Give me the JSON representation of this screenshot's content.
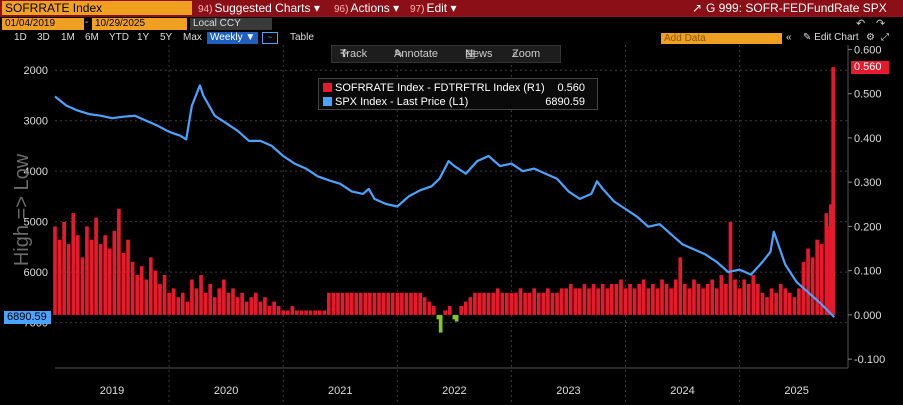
{
  "header": {
    "ticker": "SOFRRATE Index",
    "menus": [
      {
        "num": "94)",
        "label": "Suggested Charts"
      },
      {
        "num": "96)",
        "label": "Actions"
      },
      {
        "num": "97)",
        "label": "Edit"
      }
    ],
    "chart_code": "G 999: SOFR-FEDFundRate SPX"
  },
  "controls": {
    "start_date": "01/04/2019",
    "end_date": "10/29/2025",
    "currency": "Local CCY",
    "ranges": [
      "1D",
      "3D",
      "1M",
      "6M",
      "YTD",
      "1Y",
      "5Y",
      "Max"
    ],
    "frequency": "Weekly",
    "table_label": "Table",
    "add_data_placeholder": "Add Data",
    "edit_chart_label": "Edit Chart"
  },
  "toolbar": {
    "track": "Track",
    "annotate": "Annotate",
    "news": "News",
    "zoom": "Zoom"
  },
  "legend": [
    {
      "label": "SOFRRATE Index - FDTRFTRL Index (R1)",
      "value": "0.560",
      "color": "#e8192c"
    },
    {
      "label": "SPX Index - Last Price (L1)",
      "value": "6890.59",
      "color": "#4aa3ff"
    }
  ],
  "chart_data": {
    "type": "line+bar",
    "left_axis": {
      "title": "High => Low",
      "ticks": [
        "2000",
        "3000",
        "4000",
        "5000",
        "6000",
        "7000"
      ],
      "range": [
        1500,
        7900
      ],
      "inverted": true
    },
    "right_axis": {
      "ticks": [
        "0.600",
        "0.500",
        "0.400",
        "0.300",
        "0.200",
        "0.100",
        "0.000",
        "-0.100"
      ],
      "range": [
        -0.12,
        0.61
      ]
    },
    "x_labels": [
      "2019",
      "2020",
      "2021",
      "2022",
      "2023",
      "2024",
      "2025"
    ],
    "x_range": [
      2019.0,
      2025.95
    ],
    "last_values": {
      "bar": "0.560",
      "line": "6890.59"
    },
    "series": [
      {
        "name": "SPX Index - Last Price (L1)",
        "axis": "left",
        "x": [
          2019.0,
          2019.1,
          2019.2,
          2019.3,
          2019.4,
          2019.5,
          2019.6,
          2019.7,
          2019.8,
          2019.9,
          2020.0,
          2020.1,
          2020.15,
          2020.2,
          2020.27,
          2020.3,
          2020.4,
          2020.5,
          2020.6,
          2020.7,
          2020.8,
          2020.9,
          2021.0,
          2021.1,
          2021.2,
          2021.3,
          2021.4,
          2021.5,
          2021.6,
          2021.7,
          2021.75,
          2021.8,
          2021.9,
          2022.0,
          2022.1,
          2022.2,
          2022.3,
          2022.37,
          2022.45,
          2022.5,
          2022.6,
          2022.7,
          2022.8,
          2022.9,
          2023.0,
          2023.1,
          2023.2,
          2023.3,
          2023.4,
          2023.5,
          2023.6,
          2023.7,
          2023.75,
          2023.8,
          2023.9,
          2024.0,
          2024.1,
          2024.2,
          2024.3,
          2024.4,
          2024.5,
          2024.6,
          2024.7,
          2024.8,
          2024.9,
          2025.0,
          2025.1,
          2025.2,
          2025.27,
          2025.3,
          2025.4,
          2025.5,
          2025.6,
          2025.7,
          2025.83
        ],
        "values": [
          2520,
          2700,
          2800,
          2870,
          2900,
          2950,
          2920,
          2900,
          3000,
          3100,
          3220,
          3300,
          3370,
          2700,
          2300,
          2500,
          2900,
          3050,
          3200,
          3400,
          3400,
          3500,
          3700,
          3850,
          3950,
          4100,
          4180,
          4250,
          4400,
          4450,
          4350,
          4550,
          4650,
          4700,
          4500,
          4380,
          4300,
          4150,
          3800,
          3900,
          4050,
          3800,
          3700,
          3900,
          3850,
          4000,
          3950,
          4050,
          4150,
          4400,
          4550,
          4450,
          4200,
          4350,
          4600,
          4750,
          4900,
          5100,
          5050,
          5250,
          5450,
          5550,
          5650,
          5800,
          6000,
          5950,
          6050,
          5800,
          5600,
          5200,
          5850,
          6200,
          6400,
          6600,
          6890.59
        ]
      },
      {
        "name": "SOFRRATE Index - FDTRFTRL Index (R1)",
        "axis": "right",
        "type": "bar",
        "points": [
          [
            2019.0,
            0.2
          ],
          [
            2019.04,
            0.17
          ],
          [
            2019.08,
            0.21
          ],
          [
            2019.12,
            0.16
          ],
          [
            2019.16,
            0.23
          ],
          [
            2019.2,
            0.18
          ],
          [
            2019.24,
            0.13
          ],
          [
            2019.28,
            0.2
          ],
          [
            2019.32,
            0.17
          ],
          [
            2019.36,
            0.22
          ],
          [
            2019.4,
            0.16
          ],
          [
            2019.44,
            0.18
          ],
          [
            2019.48,
            0.15
          ],
          [
            2019.52,
            0.19
          ],
          [
            2019.56,
            0.24
          ],
          [
            2019.6,
            0.14
          ],
          [
            2019.64,
            0.17
          ],
          [
            2019.68,
            0.12
          ],
          [
            2019.72,
            0.09
          ],
          [
            2019.76,
            0.11
          ],
          [
            2019.8,
            0.08
          ],
          [
            2019.84,
            0.13
          ],
          [
            2019.88,
            0.1
          ],
          [
            2019.92,
            0.07
          ],
          [
            2019.96,
            0.09
          ],
          [
            2020.0,
            0.05
          ],
          [
            2020.04,
            0.06
          ],
          [
            2020.08,
            0.04
          ],
          [
            2020.12,
            0.05
          ],
          [
            2020.16,
            0.03
          ],
          [
            2020.2,
            0.08
          ],
          [
            2020.24,
            0.06
          ],
          [
            2020.28,
            0.09
          ],
          [
            2020.32,
            0.05
          ],
          [
            2020.36,
            0.07
          ],
          [
            2020.4,
            0.04
          ],
          [
            2020.44,
            0.06
          ],
          [
            2020.48,
            0.08
          ],
          [
            2020.52,
            0.05
          ],
          [
            2020.56,
            0.06
          ],
          [
            2020.6,
            0.04
          ],
          [
            2020.64,
            0.05
          ],
          [
            2020.68,
            0.03
          ],
          [
            2020.72,
            0.04
          ],
          [
            2020.76,
            0.05
          ],
          [
            2020.8,
            0.03
          ],
          [
            2020.84,
            0.04
          ],
          [
            2020.88,
            0.02
          ],
          [
            2020.92,
            0.03
          ],
          [
            2020.96,
            0.02
          ],
          [
            2021.0,
            0.01
          ],
          [
            2021.04,
            0.01
          ],
          [
            2021.08,
            0.02
          ],
          [
            2021.12,
            0.01
          ],
          [
            2021.16,
            0.01
          ],
          [
            2021.2,
            0.01
          ],
          [
            2021.24,
            0.01
          ],
          [
            2021.28,
            0.01
          ],
          [
            2021.32,
            0.01
          ],
          [
            2021.36,
            0.01
          ],
          [
            2021.4,
            0.05
          ],
          [
            2021.44,
            0.05
          ],
          [
            2021.48,
            0.05
          ],
          [
            2021.52,
            0.05
          ],
          [
            2021.56,
            0.05
          ],
          [
            2021.6,
            0.05
          ],
          [
            2021.64,
            0.05
          ],
          [
            2021.68,
            0.05
          ],
          [
            2021.72,
            0.05
          ],
          [
            2021.76,
            0.05
          ],
          [
            2021.8,
            0.05
          ],
          [
            2021.84,
            0.05
          ],
          [
            2021.88,
            0.05
          ],
          [
            2021.92,
            0.05
          ],
          [
            2021.96,
            0.05
          ],
          [
            2022.0,
            0.05
          ],
          [
            2022.04,
            0.05
          ],
          [
            2022.08,
            0.05
          ],
          [
            2022.12,
            0.05
          ],
          [
            2022.16,
            0.05
          ],
          [
            2022.2,
            0.05
          ],
          [
            2022.24,
            0.04
          ],
          [
            2022.28,
            0.03
          ],
          [
            2022.32,
            0.02
          ],
          [
            2022.36,
            -0.01
          ],
          [
            2022.38,
            -0.04
          ],
          [
            2022.42,
            0.01
          ],
          [
            2022.46,
            0.02
          ],
          [
            2022.5,
            -0.01
          ],
          [
            2022.52,
            -0.015
          ],
          [
            2022.56,
            0.02
          ],
          [
            2022.6,
            0.03
          ],
          [
            2022.64,
            0.04
          ],
          [
            2022.68,
            0.05
          ],
          [
            2022.72,
            0.05
          ],
          [
            2022.76,
            0.05
          ],
          [
            2022.8,
            0.05
          ],
          [
            2022.84,
            0.05
          ],
          [
            2022.88,
            0.06
          ],
          [
            2022.92,
            0.05
          ],
          [
            2022.96,
            0.05
          ],
          [
            2023.0,
            0.05
          ],
          [
            2023.04,
            0.05
          ],
          [
            2023.08,
            0.06
          ],
          [
            2023.12,
            0.05
          ],
          [
            2023.16,
            0.05
          ],
          [
            2023.2,
            0.06
          ],
          [
            2023.24,
            0.05
          ],
          [
            2023.28,
            0.05
          ],
          [
            2023.32,
            0.06
          ],
          [
            2023.36,
            0.05
          ],
          [
            2023.4,
            0.05
          ],
          [
            2023.44,
            0.06
          ],
          [
            2023.48,
            0.06
          ],
          [
            2023.52,
            0.07
          ],
          [
            2023.56,
            0.06
          ],
          [
            2023.6,
            0.06
          ],
          [
            2023.64,
            0.07
          ],
          [
            2023.68,
            0.06
          ],
          [
            2023.72,
            0.07
          ],
          [
            2023.76,
            0.06
          ],
          [
            2023.8,
            0.07
          ],
          [
            2023.84,
            0.06
          ],
          [
            2023.88,
            0.07
          ],
          [
            2023.92,
            0.07
          ],
          [
            2023.96,
            0.08
          ],
          [
            2024.0,
            0.06
          ],
          [
            2024.04,
            0.07
          ],
          [
            2024.08,
            0.06
          ],
          [
            2024.12,
            0.07
          ],
          [
            2024.16,
            0.08
          ],
          [
            2024.2,
            0.06
          ],
          [
            2024.24,
            0.07
          ],
          [
            2024.28,
            0.06
          ],
          [
            2024.32,
            0.08
          ],
          [
            2024.36,
            0.07
          ],
          [
            2024.4,
            0.06
          ],
          [
            2024.44,
            0.08
          ],
          [
            2024.48,
            0.13
          ],
          [
            2024.52,
            0.07
          ],
          [
            2024.56,
            0.06
          ],
          [
            2024.6,
            0.08
          ],
          [
            2024.64,
            0.07
          ],
          [
            2024.68,
            0.06
          ],
          [
            2024.72,
            0.07
          ],
          [
            2024.76,
            0.08
          ],
          [
            2024.8,
            0.06
          ],
          [
            2024.84,
            0.09
          ],
          [
            2024.88,
            0.07
          ],
          [
            2024.92,
            0.21
          ],
          [
            2024.96,
            0.08
          ],
          [
            2025.0,
            0.06
          ],
          [
            2025.04,
            0.08
          ],
          [
            2025.08,
            0.07
          ],
          [
            2025.12,
            0.09
          ],
          [
            2025.16,
            0.07
          ],
          [
            2025.2,
            0.05
          ],
          [
            2025.24,
            0.04
          ],
          [
            2025.28,
            0.06
          ],
          [
            2025.32,
            0.05
          ],
          [
            2025.36,
            0.07
          ],
          [
            2025.4,
            0.06
          ],
          [
            2025.44,
            0.05
          ],
          [
            2025.48,
            0.04
          ],
          [
            2025.52,
            0.06
          ],
          [
            2025.56,
            0.12
          ],
          [
            2025.6,
            0.15
          ],
          [
            2025.64,
            0.13
          ],
          [
            2025.68,
            0.17
          ],
          [
            2025.72,
            0.16
          ],
          [
            2025.76,
            0.23
          ],
          [
            2025.78,
            0.2
          ],
          [
            2025.8,
            0.25
          ],
          [
            2025.82,
            0.56
          ]
        ]
      }
    ]
  }
}
